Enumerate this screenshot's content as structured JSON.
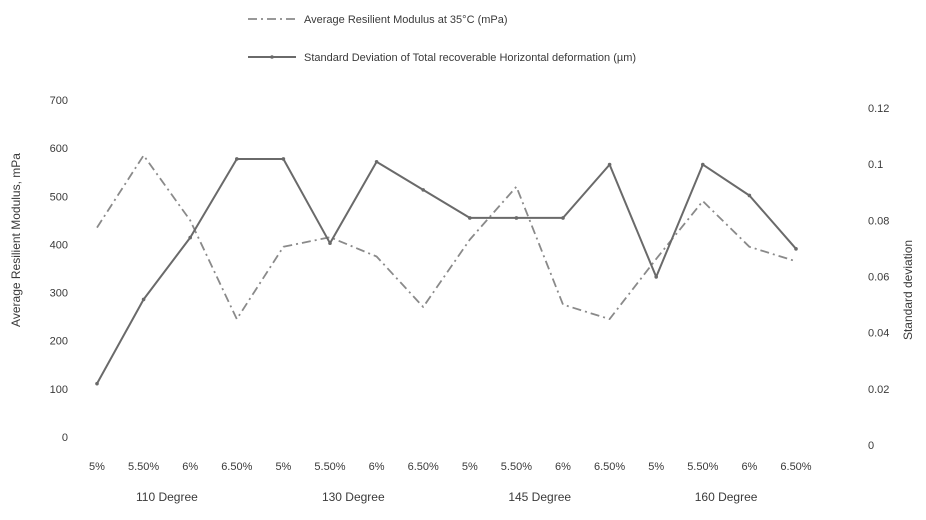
{
  "chart_data": {
    "type": "line",
    "title": "",
    "legend_position": "top",
    "grid": false,
    "ylabel_left": "Average Resilient Modulus, mPa",
    "ylabel_right": "Standard deviation",
    "xlabel": "",
    "ylim_left": [
      0,
      700
    ],
    "yticks_left": [
      "0",
      "100",
      "200",
      "300",
      "400",
      "500",
      "600",
      "700"
    ],
    "ylim_right": [
      0,
      0.12
    ],
    "yticks_right": [
      "0",
      "0.02",
      "0.04",
      "0.06",
      "0.08",
      "0.1",
      "0.12"
    ],
    "categories": [
      "5%",
      "5.50%",
      "6%",
      "6.50%",
      "5%",
      "5.50%",
      "6%",
      "6.50%",
      "5%",
      "5.50%",
      "6%",
      "6.50%",
      "5%",
      "5.50%",
      "6%",
      "6.50%"
    ],
    "groups": [
      "110 Degree",
      "130 Degree",
      "145 Degree",
      "160 Degree"
    ],
    "series": [
      {
        "name": "Average Resilient Modulus at 35°C (mPa)",
        "axis": "left",
        "style": "dash-dot",
        "color": "#8a8a8a",
        "values": [
          435,
          585,
          450,
          245,
          395,
          415,
          375,
          270,
          410,
          520,
          275,
          245,
          370,
          490,
          395,
          365
        ]
      },
      {
        "name": "Standard Deviation of Total recoverable Horizontal deformation (µm)",
        "axis": "right",
        "style": "solid",
        "color": "#6a6a6a",
        "values": [
          0.019,
          0.049,
          0.071,
          0.099,
          0.099,
          0.069,
          0.098,
          0.088,
          0.078,
          0.078,
          0.078,
          0.097,
          0.057,
          0.097,
          0.086,
          0.067
        ]
      }
    ]
  }
}
